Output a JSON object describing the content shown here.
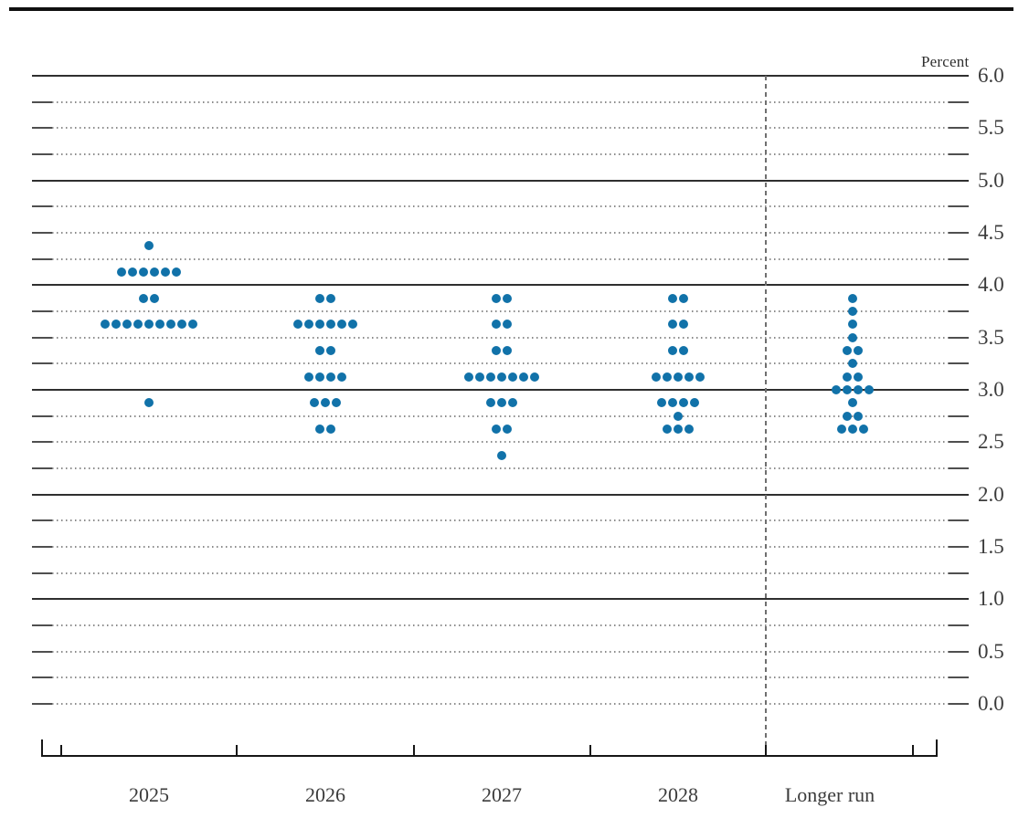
{
  "colors": {
    "dot": "#1172a9",
    "solid_gridline": "#2f2f2f",
    "dotted_gridline": "#8b8b8b",
    "dashed_separator": "#6f6f6f",
    "axis": "#161616",
    "label_text": "#3c3c3c"
  },
  "chart_data": {
    "type": "scatter",
    "subtype": "fomc-dot-plot",
    "title": "",
    "xlabel": "",
    "ylabel": "Percent",
    "categories": [
      "2025",
      "2026",
      "2027",
      "2028",
      "Longer run"
    ],
    "ylim": [
      0.0,
      6.0
    ],
    "y_gridline_step": 0.25,
    "y_label_step": 0.5,
    "y_tick_labels": [
      "6.0",
      "5.5",
      "5.0",
      "4.5",
      "4.0",
      "3.5",
      "3.0",
      "2.5",
      "2.0",
      "1.5",
      "1.0",
      "0.5",
      "0.0"
    ],
    "grid": "solid lines at integers, dotted lines at quarter steps",
    "legend_position": "none",
    "separator_before_category": "Longer run",
    "dots_per_column": 19,
    "series": [
      {
        "name": "2025",
        "dots": [
          {
            "rate": 4.375,
            "count": 1
          },
          {
            "rate": 4.125,
            "count": 6
          },
          {
            "rate": 3.875,
            "count": 2
          },
          {
            "rate": 3.625,
            "count": 9
          },
          {
            "rate": 2.875,
            "count": 1
          }
        ]
      },
      {
        "name": "2026",
        "dots": [
          {
            "rate": 3.875,
            "count": 2
          },
          {
            "rate": 3.625,
            "count": 6
          },
          {
            "rate": 3.375,
            "count": 2
          },
          {
            "rate": 3.125,
            "count": 4
          },
          {
            "rate": 2.875,
            "count": 3
          },
          {
            "rate": 2.625,
            "count": 2
          }
        ]
      },
      {
        "name": "2027",
        "dots": [
          {
            "rate": 3.875,
            "count": 2
          },
          {
            "rate": 3.625,
            "count": 2
          },
          {
            "rate": 3.375,
            "count": 2
          },
          {
            "rate": 3.125,
            "count": 7
          },
          {
            "rate": 2.875,
            "count": 3
          },
          {
            "rate": 2.625,
            "count": 2
          },
          {
            "rate": 2.375,
            "count": 1
          }
        ]
      },
      {
        "name": "2028",
        "dots": [
          {
            "rate": 3.875,
            "count": 2
          },
          {
            "rate": 3.625,
            "count": 2
          },
          {
            "rate": 3.375,
            "count": 2
          },
          {
            "rate": 3.125,
            "count": 5
          },
          {
            "rate": 2.875,
            "count": 4
          },
          {
            "rate": 2.75,
            "count": 1
          },
          {
            "rate": 2.625,
            "count": 3
          }
        ]
      },
      {
        "name": "Longer run",
        "dots": [
          {
            "rate": 3.875,
            "count": 1
          },
          {
            "rate": 3.75,
            "count": 1
          },
          {
            "rate": 3.625,
            "count": 1
          },
          {
            "rate": 3.5,
            "count": 1
          },
          {
            "rate": 3.375,
            "count": 2
          },
          {
            "rate": 3.25,
            "count": 1
          },
          {
            "rate": 3.125,
            "count": 2
          },
          {
            "rate": 3.0,
            "count": 4
          },
          {
            "rate": 2.875,
            "count": 1
          },
          {
            "rate": 2.75,
            "count": 2
          },
          {
            "rate": 2.625,
            "count": 3
          }
        ]
      }
    ]
  }
}
